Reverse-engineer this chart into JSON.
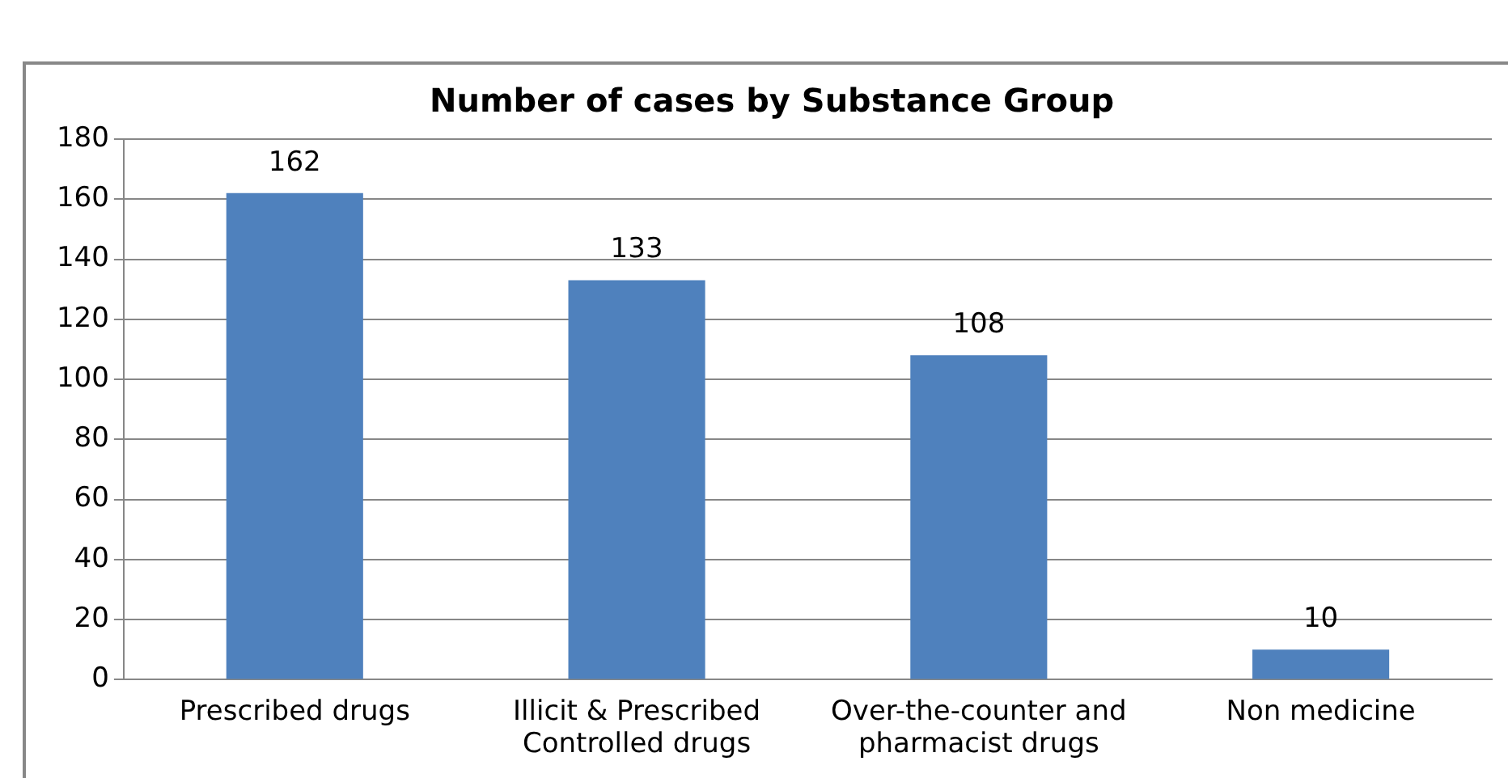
{
  "chart_data": {
    "type": "bar",
    "title": "Number of cases by Substance Group",
    "categories": [
      "Prescribed drugs",
      "Illicit & Prescribed Controlled drugs",
      "Over-the-counter and pharmacist drugs",
      "Non medicine"
    ],
    "values": [
      162,
      133,
      108,
      10
    ],
    "color": "#4f81bd",
    "ylim": [
      0,
      180
    ],
    "yticks": [
      0,
      20,
      40,
      60,
      80,
      100,
      120,
      140,
      160,
      180
    ],
    "grid": "y",
    "data_labels": true,
    "legend": false
  }
}
